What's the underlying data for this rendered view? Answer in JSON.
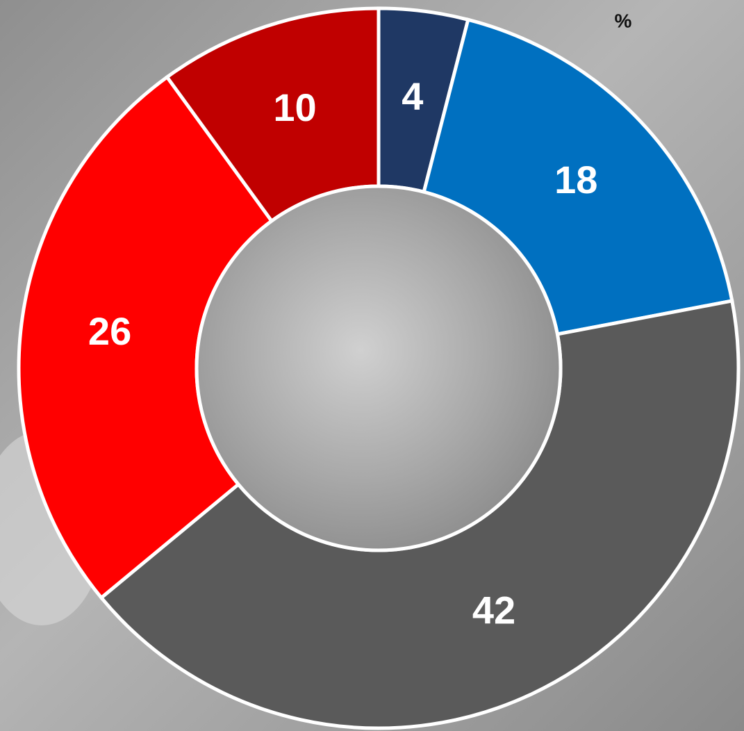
{
  "chart_data": {
    "type": "donut",
    "unit_label": "%",
    "values": [
      4,
      18,
      42,
      26,
      10
    ],
    "colors": [
      "#1f3864",
      "#0070c0",
      "#5a5a5a",
      "#ff0000",
      "#c00000"
    ]
  }
}
